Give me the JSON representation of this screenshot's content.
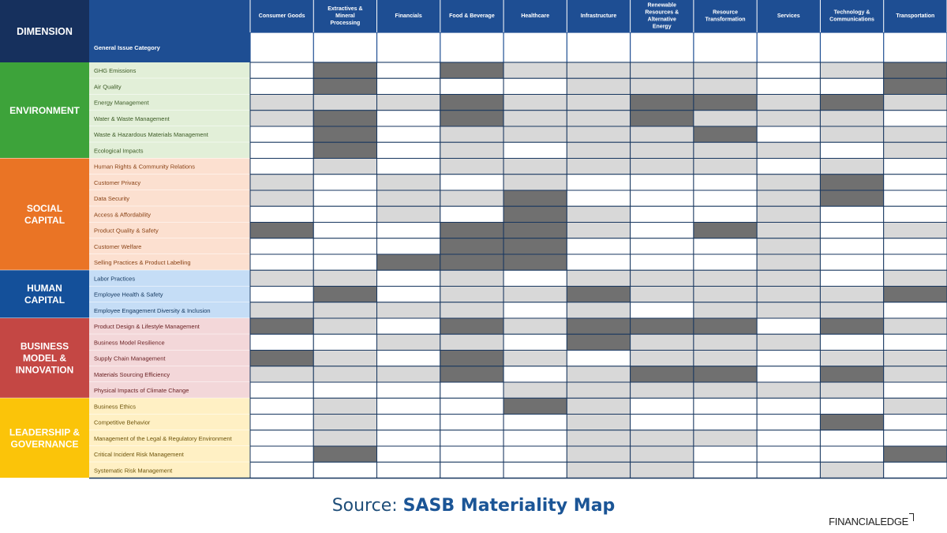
{
  "chart_data": {
    "type": "heatmap",
    "title": "",
    "corner_label": "DIMENSION",
    "subheader_label": "General Issue Category",
    "columns": [
      "Consumer Goods",
      "Extractives & Mineral Processing",
      "Financials",
      "Food & Beverage",
      "Healthcare",
      "Infrastructure",
      "Renewable Resources & Alternative Energy",
      "Resource Transformation",
      "Services",
      "Technology & Communications",
      "Transportation"
    ],
    "dimensions": [
      {
        "name": "ENVIRONMENT",
        "color": "#3da33a",
        "row_bg": "#e2efd8",
        "row_text": "#3b5a24",
        "count": 6
      },
      {
        "name": "SOCIAL CAPITAL",
        "color": "#ea7425",
        "row_bg": "#fce0d0",
        "row_text": "#8a4316",
        "count": 7
      },
      {
        "name": "HUMAN CAPITAL",
        "color": "#14509a",
        "row_bg": "#c5ddf6",
        "row_text": "#13375e",
        "count": 3
      },
      {
        "name": "BUSINESS MODEL & INNOVATION",
        "color": "#c44744",
        "row_bg": "#f3d7d9",
        "row_text": "#6b2224",
        "count": 5
      },
      {
        "name": "LEADERSHIP & GOVERNANCE",
        "color": "#fbc409",
        "row_bg": "#fff0c4",
        "row_text": "#6b5208",
        "count": 5
      }
    ],
    "rows": [
      "GHG Emissions",
      "Air Quality",
      "Energy Management",
      "Water & Waste Management",
      "Waste & Hazardous Materials Management",
      "Ecological Impacts",
      "Human Rights & Community Relations",
      "Customer Privacy",
      "Data Security",
      "Access & Affordability",
      "Product Quality & Safety",
      "Customer Welfare",
      "Selling Practices & Product Labelling",
      "Labor Practices",
      "Employee Health & Safety",
      "Employee Engagement Diversity & Inclusion",
      "Product Design & Lifestyle Management",
      "Business Model Resilience",
      "Supply Chain Management",
      "Materials Sourcing Efficiency",
      "Physical Impacts of Climate Change",
      "Business Ethics",
      "Competitive Behavior",
      "Management of the Legal & Regulatory Environment",
      "Critical Incident Risk Management",
      "Systematic Risk Management"
    ],
    "legend_levels": {
      "0": "blank",
      "1": "light grey",
      "2": "dark grey"
    },
    "level_colors": {
      "0": "#ffffff",
      "1": "#d8d8d8",
      "2": "#707070"
    },
    "values": [
      [
        0,
        2,
        0,
        2,
        1,
        1,
        1,
        1,
        0,
        1,
        2
      ],
      [
        0,
        2,
        0,
        0,
        0,
        1,
        1,
        1,
        0,
        0,
        2
      ],
      [
        1,
        1,
        1,
        2,
        1,
        1,
        2,
        2,
        1,
        2,
        1
      ],
      [
        1,
        2,
        0,
        2,
        1,
        1,
        2,
        1,
        1,
        1,
        0
      ],
      [
        0,
        2,
        0,
        1,
        1,
        1,
        1,
        2,
        0,
        1,
        1
      ],
      [
        0,
        2,
        0,
        1,
        0,
        1,
        1,
        1,
        1,
        0,
        1
      ],
      [
        0,
        1,
        0,
        1,
        1,
        1,
        1,
        1,
        0,
        1,
        0
      ],
      [
        1,
        0,
        1,
        0,
        1,
        0,
        0,
        0,
        1,
        2,
        0
      ],
      [
        1,
        0,
        1,
        1,
        2,
        0,
        0,
        0,
        1,
        2,
        0
      ],
      [
        0,
        0,
        1,
        0,
        2,
        1,
        0,
        0,
        1,
        0,
        0
      ],
      [
        2,
        0,
        0,
        2,
        2,
        1,
        0,
        2,
        1,
        0,
        1
      ],
      [
        0,
        0,
        0,
        2,
        2,
        0,
        0,
        0,
        1,
        0,
        0
      ],
      [
        0,
        0,
        2,
        2,
        2,
        0,
        0,
        0,
        1,
        0,
        0
      ],
      [
        1,
        1,
        0,
        1,
        0,
        1,
        1,
        1,
        1,
        0,
        1
      ],
      [
        0,
        2,
        0,
        1,
        1,
        2,
        1,
        1,
        1,
        1,
        2
      ],
      [
        1,
        1,
        1,
        1,
        0,
        1,
        0,
        1,
        1,
        1,
        0
      ],
      [
        2,
        1,
        0,
        2,
        1,
        2,
        2,
        2,
        0,
        2,
        1
      ],
      [
        0,
        0,
        1,
        1,
        0,
        2,
        1,
        1,
        1,
        0,
        0
      ],
      [
        2,
        1,
        0,
        2,
        1,
        0,
        1,
        1,
        0,
        1,
        1
      ],
      [
        1,
        1,
        1,
        2,
        0,
        1,
        2,
        2,
        0,
        2,
        1
      ],
      [
        0,
        0,
        0,
        0,
        1,
        1,
        1,
        1,
        1,
        1,
        0
      ],
      [
        0,
        1,
        0,
        0,
        2,
        1,
        0,
        0,
        0,
        0,
        1
      ],
      [
        0,
        1,
        0,
        0,
        0,
        1,
        0,
        0,
        0,
        2,
        0
      ],
      [
        0,
        1,
        0,
        0,
        0,
        1,
        1,
        1,
        0,
        0,
        0
      ],
      [
        0,
        2,
        0,
        0,
        0,
        1,
        1,
        0,
        0,
        0,
        2
      ],
      [
        0,
        0,
        0,
        0,
        0,
        1,
        1,
        0,
        0,
        1,
        0
      ]
    ]
  },
  "header_color": "#1e4e93",
  "corner_color": "#16305d",
  "footer": {
    "source_prefix": "Source: ",
    "source_name": "SASB Materiality Map",
    "brand": "FINANCIALEDGE"
  }
}
